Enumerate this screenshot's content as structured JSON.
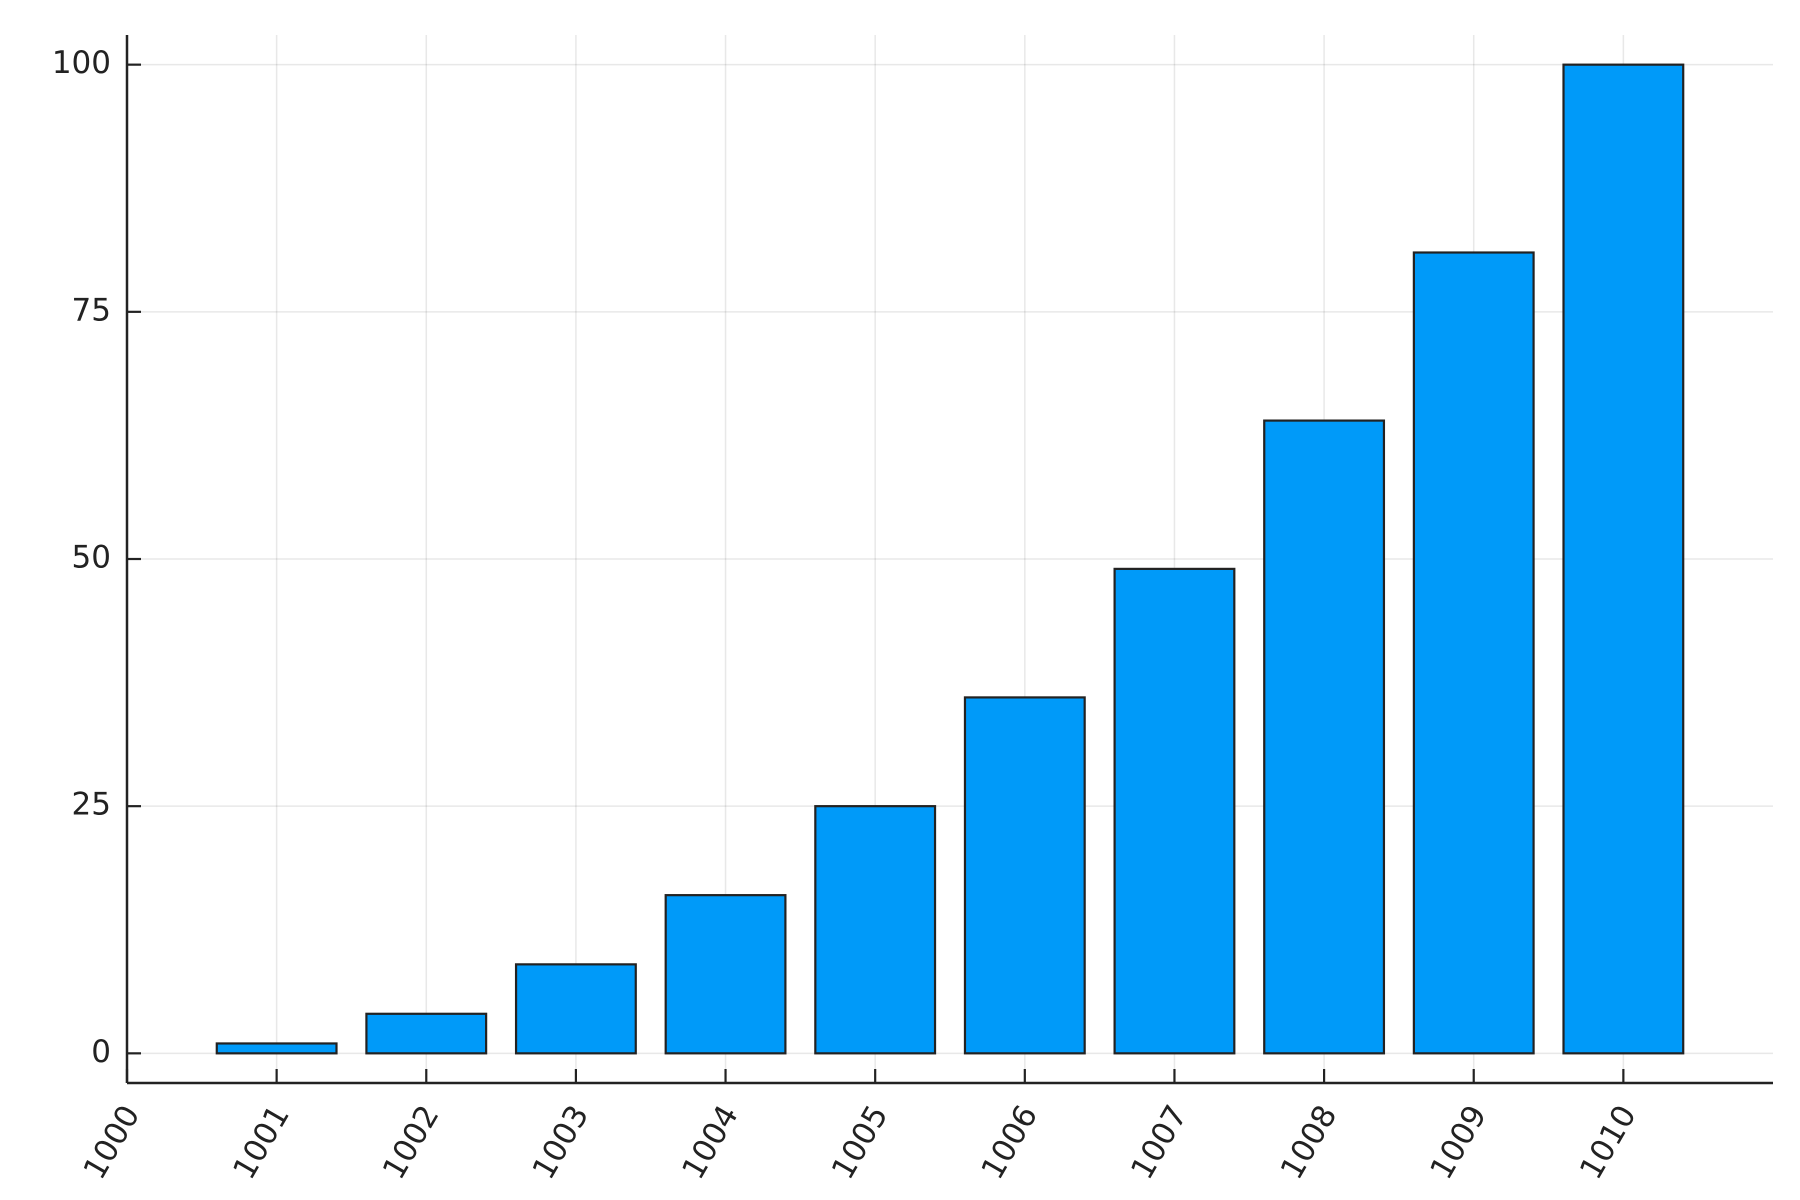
{
  "chart_data": {
    "type": "bar",
    "title": "",
    "xlabel": "",
    "ylabel": "",
    "x": [
      1001,
      1002,
      1003,
      1004,
      1005,
      1006,
      1007,
      1008,
      1009,
      1010
    ],
    "values": [
      1,
      4,
      9,
      16,
      25,
      36,
      49,
      64,
      81,
      100
    ],
    "xticks": [
      "1000",
      "1001",
      "1002",
      "1003",
      "1004",
      "1005",
      "1006",
      "1007",
      "1008",
      "1009",
      "1010"
    ],
    "yticks": [
      "0",
      "25",
      "50",
      "75",
      "100"
    ],
    "xlim": [
      1000,
      1011
    ],
    "ylim": [
      -3,
      103
    ],
    "grid": true,
    "legend": "none",
    "bar_color": "#009AF9",
    "edge_color": "#222222"
  }
}
